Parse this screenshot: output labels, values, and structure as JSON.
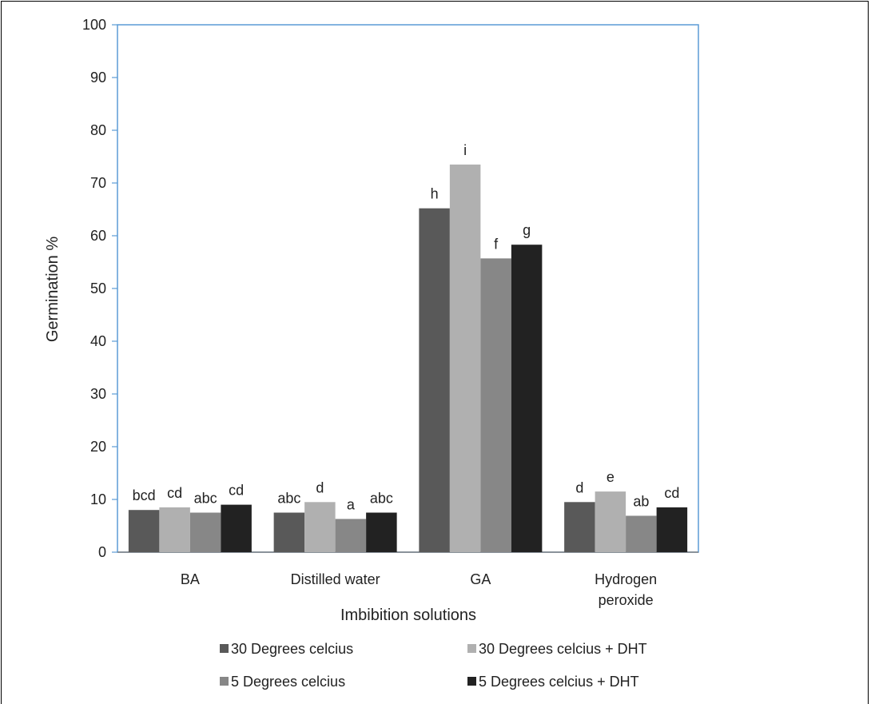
{
  "chart_data": {
    "type": "bar",
    "xlabel": "Imbibition solutions",
    "ylabel": "Germination %",
    "ylim": [
      0,
      100
    ],
    "yticks": [
      0,
      10,
      20,
      30,
      40,
      50,
      60,
      70,
      80,
      90,
      100
    ],
    "categories": [
      [
        "BA"
      ],
      [
        "Distilled water"
      ],
      [
        "GA"
      ],
      [
        "Hydrogen",
        "peroxide"
      ]
    ],
    "series": [
      {
        "name": "30 Degrees celcius",
        "color": "#595959",
        "values": [
          8.0,
          7.5,
          65.2,
          9.5
        ],
        "labels": [
          "bcd",
          "abc",
          "h",
          "d"
        ]
      },
      {
        "name": "30 Degrees celcius + DHT",
        "color": "#b0b0b0",
        "values": [
          8.5,
          9.5,
          73.5,
          11.5
        ],
        "labels": [
          "cd",
          "d",
          "i",
          "e"
        ]
      },
      {
        "name": "5 Degrees celcius",
        "color": "#878787",
        "values": [
          7.5,
          6.3,
          55.7,
          6.9
        ],
        "labels": [
          "abc",
          "a",
          "f",
          "ab"
        ]
      },
      {
        "name": "5 Degrees celcius + DHT",
        "color": "#222222",
        "values": [
          9.0,
          7.5,
          58.3,
          8.5
        ],
        "labels": [
          "cd",
          "abc",
          "g",
          "cd"
        ]
      }
    ],
    "legend_position": "bottom",
    "grid": false,
    "plot_area_border_color": "#5b9bd5"
  }
}
